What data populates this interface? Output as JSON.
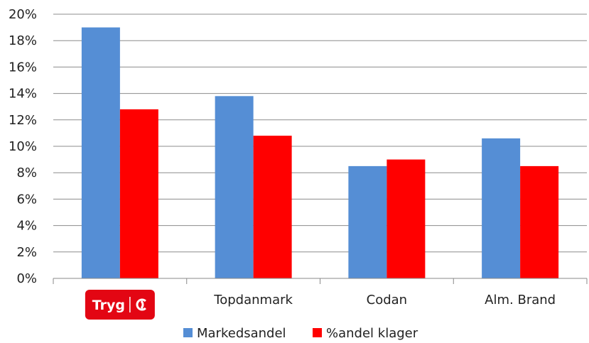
{
  "chart_data": {
    "type": "bar",
    "title": "",
    "xlabel": "",
    "ylabel": "",
    "categories": [
      "Tryg",
      "Topdanmark",
      "Codan",
      "Alm. Brand"
    ],
    "series": [
      {
        "name": "Markedsandel",
        "color": "#558ed5",
        "values": [
          19.0,
          13.8,
          8.5,
          10.6
        ]
      },
      {
        "name": "%andel klager",
        "color": "#ff0000",
        "values": [
          12.8,
          10.8,
          9.0,
          8.5
        ]
      }
    ],
    "ylim": [
      0,
      20
    ],
    "yticks": [
      "0%",
      "2%",
      "4%",
      "6%",
      "8%",
      "10%",
      "12%",
      "14%",
      "16%",
      "18%",
      "20%"
    ],
    "grid": true,
    "legend": "bottom-center",
    "category_logo": {
      "category": "Tryg",
      "text": "Tryg",
      "color": "#e30613"
    }
  }
}
